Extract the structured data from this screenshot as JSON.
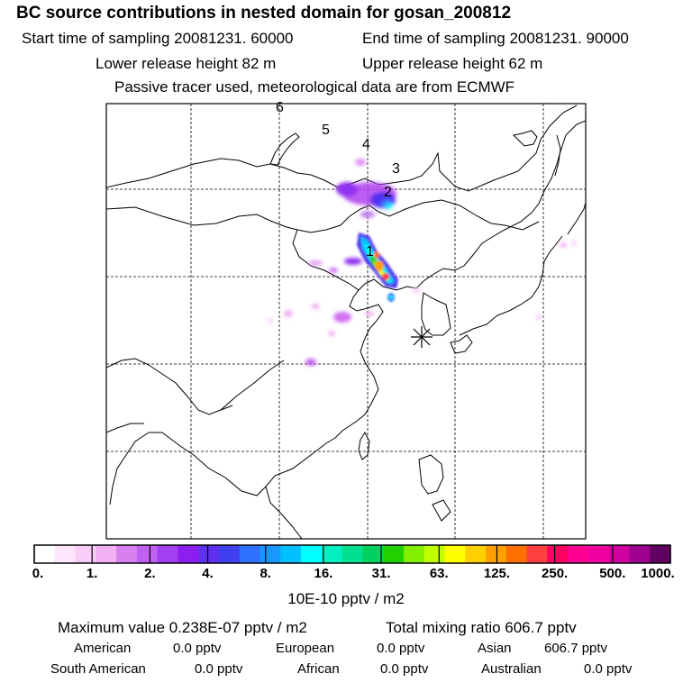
{
  "header": {
    "title": "BC  source contributions in nested domain for gosan_200812",
    "start_time": "Start time of sampling 20081231. 60000",
    "end_time": "End time of sampling 20081231. 90000",
    "lower_height": "Lower release height   82 m",
    "upper_height": "Upper release height   62 m",
    "tracer_note": "Passive tracer used, meteorological data are from ECMWF"
  },
  "trajectory_labels": [
    "1",
    "2",
    "3",
    "4",
    "5",
    "6"
  ],
  "colorbar": {
    "ticks": [
      "0.",
      "1.",
      "2.",
      "4.",
      "8.",
      "16.",
      "31.",
      "63.",
      "125.",
      "250.",
      "500.",
      "1000."
    ],
    "colors": [
      "#ffffff",
      "#fde6fb",
      "#f7ccf7",
      "#f0b0f2",
      "#d980f0",
      "#c060f0",
      "#a040f0",
      "#8c1ff0",
      "#6030f0",
      "#4040f0",
      "#3070ff",
      "#1898ff",
      "#00c0ff",
      "#00ffff",
      "#00f0c0",
      "#00e090",
      "#00d060",
      "#20d000",
      "#80f000",
      "#c0ff00",
      "#ffff00",
      "#ffd000",
      "#ffa000",
      "#ff7000",
      "#ff4040",
      "#ff0060",
      "#ff0090",
      "#f000a0",
      "#d000a0",
      "#a00090",
      "#600060"
    ],
    "unit": "10E-10 pptv / m2"
  },
  "footer": {
    "max_value": "Maximum value  0.238E-07 pptv / m2",
    "total_mixing": "Total mixing ratio      606.7 pptv",
    "american": "American",
    "american_val": "0.0 pptv",
    "european": "European",
    "european_val": "0.0 pptv",
    "asian": "Asian",
    "asian_val": "606.7 pptv",
    "south_american": "South American",
    "south_american_val": "0.0 pptv",
    "african": "African",
    "african_val": "0.0 pptv",
    "australian": "Australian",
    "australian_val": "0.0 pptv"
  }
}
